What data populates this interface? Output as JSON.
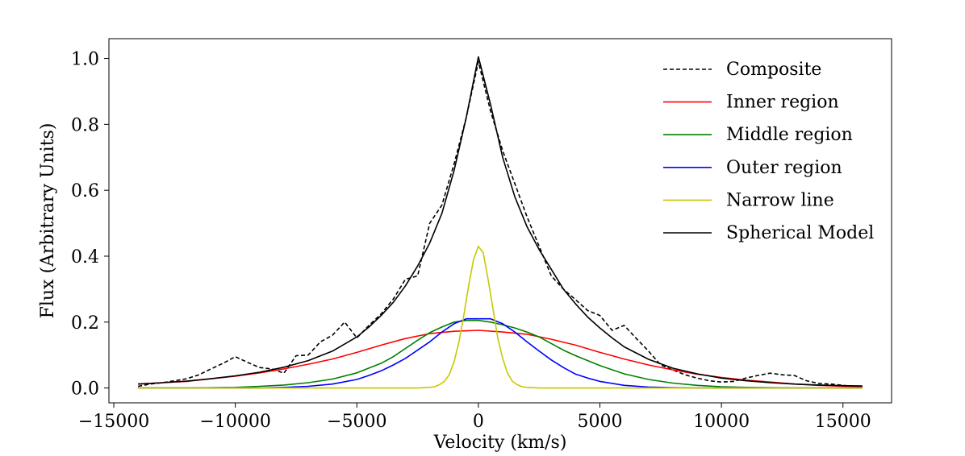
{
  "chart_data": {
    "type": "line",
    "title": "",
    "xlabel": "Velocity (km/s)",
    "ylabel": "Flux (Arbitrary Units)",
    "xlim": [
      -15200,
      17000
    ],
    "ylim": [
      -0.045,
      1.06
    ],
    "xticks": [
      -15000,
      -10000,
      -5000,
      0,
      5000,
      10000,
      15000
    ],
    "xtick_labels": [
      "−15000",
      "−10000",
      "−5000",
      "0",
      "5000",
      "10000",
      "15000"
    ],
    "yticks": [
      0.0,
      0.2,
      0.4,
      0.6,
      0.8,
      1.0
    ],
    "ytick_labels": [
      "0.0",
      "0.2",
      "0.4",
      "0.6",
      "0.8",
      "1.0"
    ],
    "legend_position": "top-right",
    "series": [
      {
        "name": "Composite",
        "color": "#000000",
        "style": "dashed",
        "x": [
          -14000,
          -13500,
          -13000,
          -12500,
          -12000,
          -11500,
          -11000,
          -10500,
          -10000,
          -9500,
          -9000,
          -8500,
          -8000,
          -7500,
          -7000,
          -6500,
          -6000,
          -5500,
          -5000,
          -4500,
          -4000,
          -3500,
          -3000,
          -2500,
          -2000,
          -1500,
          -1000,
          -500,
          0,
          500,
          1000,
          1500,
          2000,
          2500,
          3000,
          3500,
          4000,
          4500,
          5000,
          5500,
          6000,
          6500,
          7000,
          7500,
          8000,
          8500,
          9000,
          9500,
          10000,
          10500,
          11000,
          11500,
          12000,
          12500,
          13000,
          13500,
          14000,
          14500,
          15000,
          15500,
          15800
        ],
        "y": [
          0.005,
          0.012,
          0.016,
          0.022,
          0.028,
          0.04,
          0.058,
          0.075,
          0.095,
          0.078,
          0.062,
          0.058,
          0.045,
          0.098,
          0.1,
          0.14,
          0.16,
          0.2,
          0.152,
          0.19,
          0.225,
          0.27,
          0.33,
          0.34,
          0.5,
          0.555,
          0.68,
          0.82,
          0.99,
          0.84,
          0.72,
          0.62,
          0.52,
          0.43,
          0.34,
          0.3,
          0.268,
          0.235,
          0.22,
          0.175,
          0.19,
          0.15,
          0.112,
          0.07,
          0.055,
          0.04,
          0.03,
          0.022,
          0.018,
          0.02,
          0.03,
          0.038,
          0.045,
          0.04,
          0.038,
          0.022,
          0.014,
          0.012,
          0.008,
          0.004,
          0.003
        ]
      },
      {
        "name": "Inner region",
        "color": "#ff0000",
        "style": "solid",
        "x": [
          -14000,
          -13000,
          -12000,
          -11000,
          -10000,
          -9000,
          -8000,
          -7000,
          -6000,
          -5000,
          -4000,
          -3000,
          -2000,
          -1000,
          0,
          1000,
          2000,
          3000,
          4000,
          5000,
          6000,
          7000,
          8000,
          9000,
          10000,
          11000,
          12000,
          13000,
          14000,
          15000,
          15800
        ],
        "y": [
          0.012,
          0.016,
          0.02,
          0.028,
          0.036,
          0.046,
          0.058,
          0.072,
          0.088,
          0.108,
          0.13,
          0.15,
          0.165,
          0.172,
          0.175,
          0.17,
          0.163,
          0.148,
          0.13,
          0.108,
          0.088,
          0.07,
          0.055,
          0.042,
          0.032,
          0.024,
          0.018,
          0.012,
          0.008,
          0.005,
          0.004
        ]
      },
      {
        "name": "Middle region",
        "color": "#008000",
        "style": "solid",
        "x": [
          -14000,
          -13000,
          -12000,
          -11000,
          -10000,
          -9000,
          -8000,
          -7000,
          -6000,
          -5000,
          -4000,
          -3500,
          -3000,
          -2500,
          -2000,
          -1500,
          -1000,
          -500,
          0,
          500,
          1000,
          1500,
          2000,
          2500,
          3000,
          3500,
          4000,
          5000,
          6000,
          7000,
          8000,
          9000,
          10000,
          11000,
          12000,
          13000,
          14000,
          15000,
          15800
        ],
        "y": [
          0.0,
          0.0,
          0.0,
          0.001,
          0.002,
          0.005,
          0.009,
          0.016,
          0.027,
          0.046,
          0.075,
          0.095,
          0.12,
          0.145,
          0.168,
          0.185,
          0.2,
          0.205,
          0.205,
          0.2,
          0.192,
          0.182,
          0.17,
          0.155,
          0.135,
          0.115,
          0.098,
          0.068,
          0.043,
          0.026,
          0.015,
          0.008,
          0.004,
          0.002,
          0.001,
          0.0,
          0.0,
          0.0,
          0.0
        ]
      },
      {
        "name": "Outer region",
        "color": "#0000ff",
        "style": "solid",
        "x": [
          -14000,
          -12000,
          -10000,
          -9000,
          -8000,
          -7000,
          -6000,
          -5000,
          -4500,
          -4000,
          -3500,
          -3000,
          -2500,
          -2000,
          -1500,
          -1000,
          -500,
          0,
          500,
          1000,
          1500,
          2000,
          2500,
          3000,
          3500,
          4000,
          4500,
          5000,
          6000,
          7000,
          8000,
          9000,
          10000,
          12000,
          14000,
          15800
        ],
        "y": [
          0.0,
          0.0,
          0.0,
          0.0,
          0.002,
          0.005,
          0.012,
          0.026,
          0.038,
          0.052,
          0.07,
          0.09,
          0.115,
          0.14,
          0.17,
          0.195,
          0.21,
          0.21,
          0.21,
          0.195,
          0.17,
          0.14,
          0.112,
          0.085,
          0.062,
          0.042,
          0.03,
          0.02,
          0.008,
          0.003,
          0.001,
          0.0,
          0.0,
          0.0,
          0.0,
          0.0
        ]
      },
      {
        "name": "Narrow line",
        "color": "#c8c800",
        "style": "solid",
        "x": [
          -14000,
          -5000,
          -2500,
          -2000,
          -1800,
          -1600,
          -1400,
          -1200,
          -1000,
          -800,
          -600,
          -400,
          -200,
          0,
          200,
          400,
          600,
          800,
          1000,
          1200,
          1400,
          1600,
          1800,
          2000,
          2500,
          5000,
          15800
        ],
        "y": [
          0.0,
          0.0,
          0.0,
          0.002,
          0.004,
          0.01,
          0.02,
          0.04,
          0.08,
          0.14,
          0.22,
          0.31,
          0.39,
          0.43,
          0.41,
          0.33,
          0.24,
          0.15,
          0.09,
          0.045,
          0.02,
          0.01,
          0.004,
          0.002,
          0.0,
          0.0,
          0.0
        ]
      },
      {
        "name": "Spherical Model",
        "color": "#000000",
        "style": "solid",
        "x": [
          -14000,
          -13000,
          -12000,
          -11000,
          -10000,
          -9000,
          -8000,
          -7000,
          -6000,
          -5000,
          -4500,
          -4000,
          -3500,
          -3000,
          -2500,
          -2000,
          -1500,
          -1000,
          -500,
          0,
          500,
          1000,
          1500,
          2000,
          2500,
          3000,
          3500,
          4000,
          4500,
          5000,
          5500,
          6000,
          7000,
          8000,
          9000,
          10000,
          11000,
          12000,
          13000,
          14000,
          15000,
          15800
        ],
        "y": [
          0.012,
          0.016,
          0.021,
          0.028,
          0.037,
          0.048,
          0.063,
          0.083,
          0.112,
          0.155,
          0.185,
          0.22,
          0.26,
          0.31,
          0.37,
          0.44,
          0.53,
          0.66,
          0.82,
          1.005,
          0.86,
          0.7,
          0.58,
          0.49,
          0.42,
          0.36,
          0.3,
          0.255,
          0.215,
          0.182,
          0.152,
          0.125,
          0.087,
          0.06,
          0.043,
          0.03,
          0.022,
          0.016,
          0.012,
          0.009,
          0.007,
          0.006
        ]
      }
    ]
  }
}
